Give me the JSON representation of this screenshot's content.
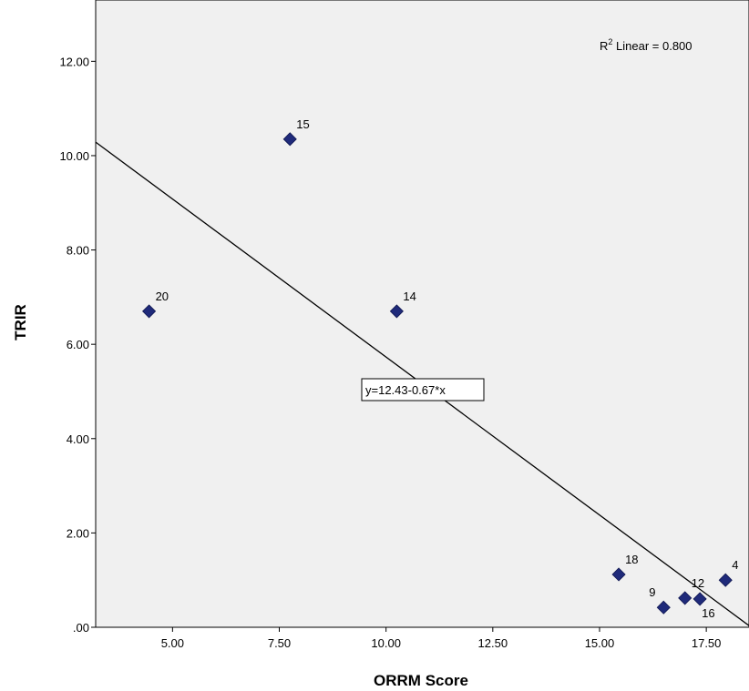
{
  "chart_data": {
    "type": "scatter",
    "xlabel": "ORRM Score",
    "ylabel": "TRIR",
    "xlim": [
      3.2,
      18.5
    ],
    "ylim": [
      0,
      13.3
    ],
    "x_ticks": [
      5,
      7.5,
      10,
      12.5,
      15,
      17.5
    ],
    "x_tick_labels": [
      "5.00",
      "7.50",
      "10.00",
      "12.50",
      "15.00",
      "17.50"
    ],
    "y_ticks": [
      0,
      2,
      4,
      6,
      8,
      10,
      12
    ],
    "y_tick_labels": [
      ".00",
      "2.00",
      "4.00",
      "6.00",
      "8.00",
      "10.00",
      "12.00"
    ],
    "points": [
      {
        "label": "20",
        "x": 4.45,
        "y": 6.7
      },
      {
        "label": "15",
        "x": 7.75,
        "y": 10.35
      },
      {
        "label": "14",
        "x": 10.25,
        "y": 6.7
      },
      {
        "label": "18",
        "x": 15.45,
        "y": 1.12
      },
      {
        "label": "9",
        "x": 16.5,
        "y": 0.42
      },
      {
        "label": "12",
        "x": 17.0,
        "y": 0.62
      },
      {
        "label": "16",
        "x": 17.35,
        "y": 0.6
      },
      {
        "label": "4",
        "x": 17.95,
        "y": 1.0
      }
    ],
    "fit_line": {
      "intercept": 12.43,
      "slope": -0.67
    },
    "fit_equation": "y=12.43-0.67*x",
    "r2_text": {
      "prefix": "R",
      "sup": "2",
      "suffix": " Linear = 0.800"
    },
    "grid": false,
    "marker_color": "#1f2a7a",
    "plot_background": "#f0f0f0"
  }
}
